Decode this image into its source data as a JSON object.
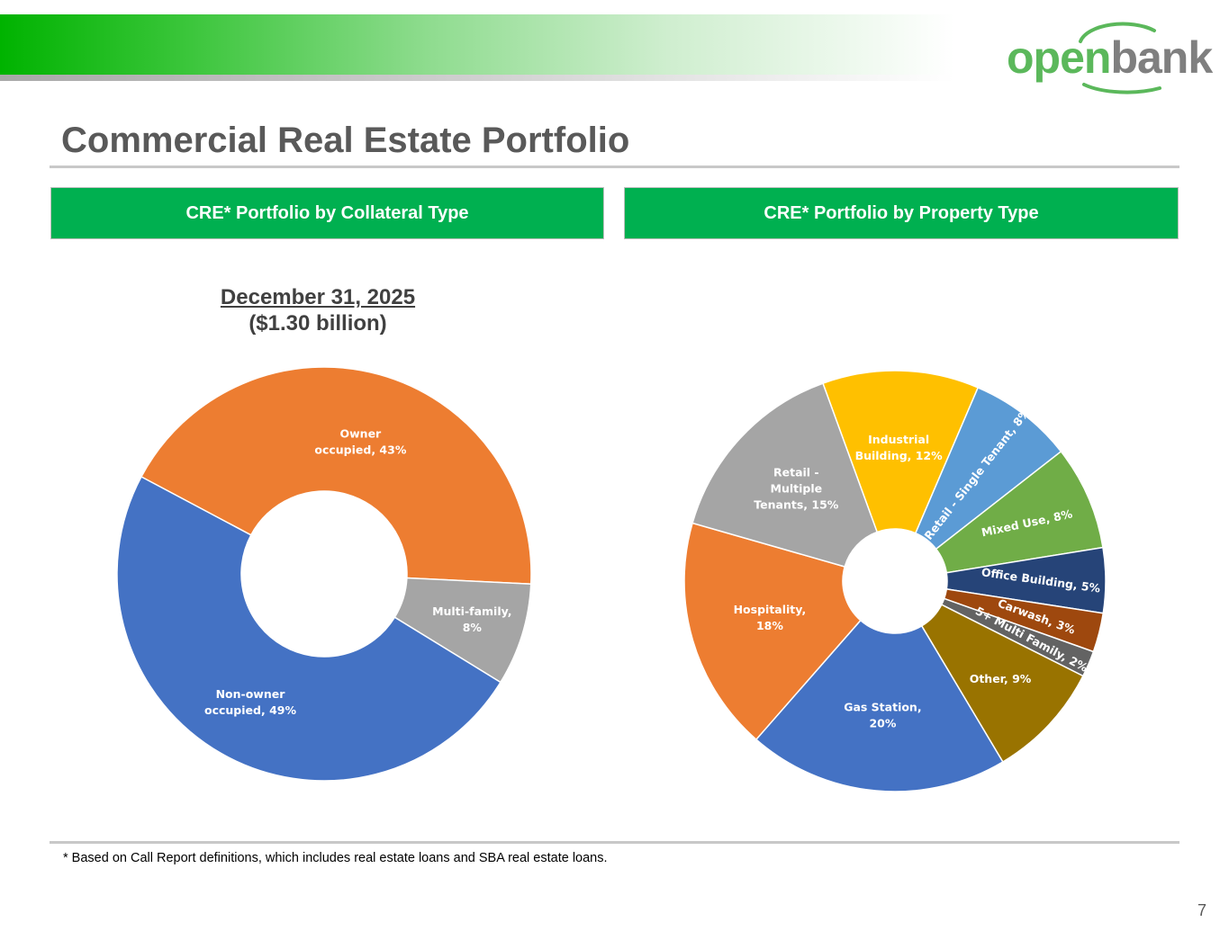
{
  "header": {
    "logo_part_open": "open",
    "logo_part_bank": "bank",
    "banner_color": "#00b300",
    "logo_green": "#5bb85b",
    "logo_gray": "#7f7f7f"
  },
  "page": {
    "title": "Commercial Real Estate Portfolio",
    "footnote": "* Based on Call Report definitions, which includes real estate loans and SBA real estate loans.",
    "page_number": "7"
  },
  "sections": {
    "left_header": "CRE* Portfolio by Collateral Type",
    "right_header": "CRE* Portfolio by Property Type",
    "header_color": "#00b050"
  },
  "left_chart": {
    "date": "December 31, 2025",
    "total": "($1.30 billion)"
  },
  "chart_data": [
    {
      "type": "pie",
      "variant": "donut",
      "slices": [
        {
          "label": [
            "Owner",
            "occupied, 43%"
          ],
          "category": "Owner occupied",
          "value": 43,
          "color": "#ed7d31"
        },
        {
          "label": [
            "Multi-family,",
            "8%"
          ],
          "category": "Multi-family",
          "value": 8,
          "color": "#a5a5a5"
        },
        {
          "label": [
            "Non-owner",
            "occupied, 49%"
          ],
          "category": "Non-owner occupied",
          "value": 49,
          "color": "#4472c4"
        }
      ]
    },
    {
      "type": "pie",
      "variant": "donut",
      "slices": [
        {
          "label": [
            "Industrial",
            "Building, 12%"
          ],
          "category": "Industrial Building",
          "value": 12,
          "color": "#ffc000"
        },
        {
          "label": [
            "Retail - Single Tenant, 8%"
          ],
          "category": "Retail - Single Tenant",
          "value": 8,
          "color": "#5b9bd5"
        },
        {
          "label": [
            "Mixed Use, 8%"
          ],
          "category": "Mixed Use",
          "value": 8,
          "color": "#70ad47"
        },
        {
          "label": [
            "Office Building, 5%"
          ],
          "category": "Office Building",
          "value": 5,
          "color": "#264478"
        },
        {
          "label": [
            "Carwash, 3%"
          ],
          "category": "Carwash",
          "value": 3,
          "color": "#9e480e"
        },
        {
          "label": [
            "5+ Multi Family, 2%"
          ],
          "category": "5+ Multi Family",
          "value": 2,
          "color": "#636363"
        },
        {
          "label": [
            "Other, 9%"
          ],
          "category": "Other",
          "value": 9,
          "color": "#997300"
        },
        {
          "label": [
            "Gas Station,",
            "20%"
          ],
          "category": "Gas Station",
          "value": 20,
          "color": "#4472c4"
        },
        {
          "label": [
            "Hospitality,",
            "18%"
          ],
          "category": "Hospitality",
          "value": 18,
          "color": "#ed7d31"
        },
        {
          "label": [
            "Retail -",
            "Multiple",
            "Tenants, 15%"
          ],
          "category": "Retail - Multiple Tenants",
          "value": 15,
          "color": "#a5a5a5"
        }
      ]
    }
  ]
}
